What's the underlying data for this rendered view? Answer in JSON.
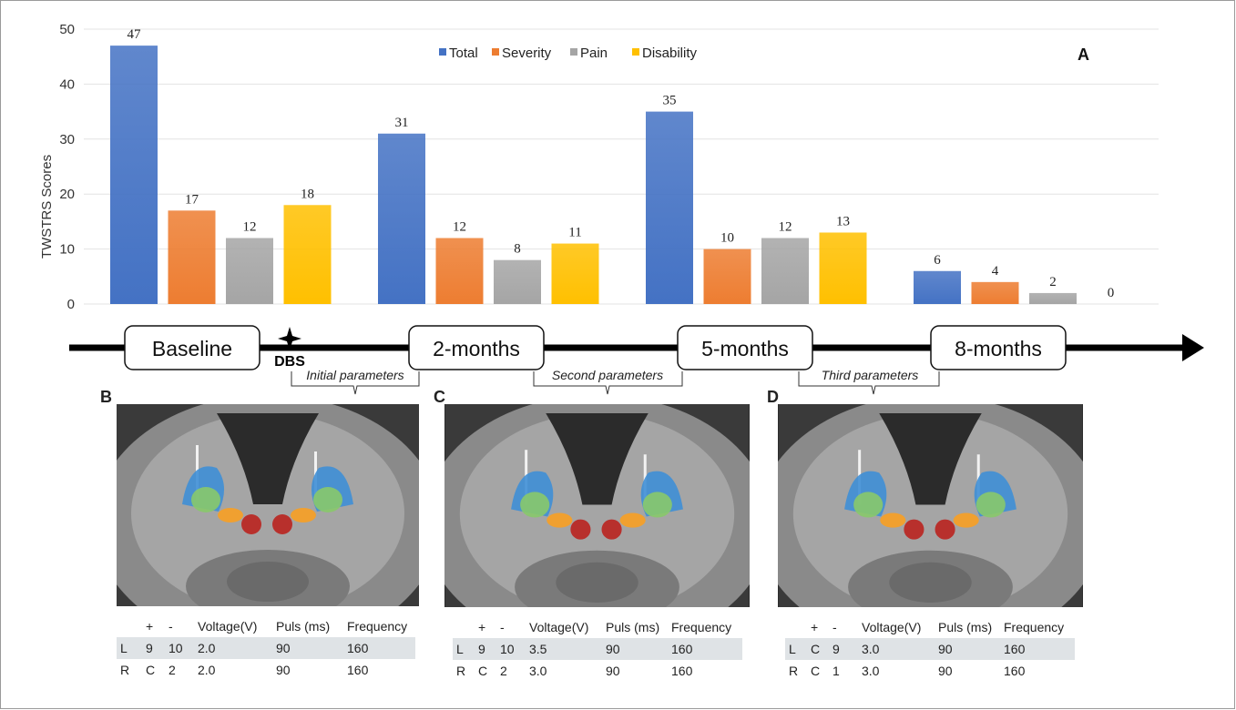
{
  "chart_data": {
    "type": "bar",
    "panel_label": "A",
    "ylabel": "TWSTRS Scores",
    "ylim": [
      0,
      50
    ],
    "yticks": [
      0,
      10,
      20,
      30,
      40,
      50
    ],
    "categories": [
      "Baseline",
      "2-months",
      "5-months",
      "8-months"
    ],
    "series": [
      {
        "name": "Total",
        "color": "#4472c4",
        "values": [
          47,
          31,
          35,
          6
        ]
      },
      {
        "name": "Severity",
        "color": "#ed7d31",
        "values": [
          17,
          12,
          10,
          4
        ]
      },
      {
        "name": "Pain",
        "color": "#a5a5a5",
        "values": [
          12,
          8,
          12,
          2
        ]
      },
      {
        "name": "Disability",
        "color": "#ffc000",
        "values": [
          18,
          11,
          13,
          0
        ]
      }
    ],
    "legend_position": "top",
    "grid": true
  },
  "timeline": {
    "labels": [
      "Baseline",
      "2-months",
      "5-months",
      "8-months"
    ],
    "event": "DBS",
    "brackets": [
      "Initial parameters",
      "Second parameters",
      "Third parameters"
    ]
  },
  "panels": [
    {
      "letter": "B",
      "table": {
        "headers": [
          "",
          "+",
          "-",
          "Voltage(V)",
          "Puls (ms)",
          "Frequency"
        ],
        "rows": [
          [
            "L",
            "9",
            "10",
            "2.0",
            "90",
            "160"
          ],
          [
            "R",
            "C",
            "2",
            "2.0",
            "90",
            "160"
          ]
        ]
      }
    },
    {
      "letter": "C",
      "table": {
        "headers": [
          "",
          "+",
          "-",
          "Voltage(V)",
          "Puls (ms)",
          "Frequency"
        ],
        "rows": [
          [
            "L",
            "9",
            "10",
            "3.5",
            "90",
            "160"
          ],
          [
            "R",
            "C",
            "2",
            "3.0",
            "90",
            "160"
          ]
        ]
      }
    },
    {
      "letter": "D",
      "table": {
        "headers": [
          "",
          "+",
          "-",
          "Voltage(V)",
          "Puls (ms)",
          "Frequency"
        ],
        "rows": [
          [
            "L",
            "C",
            "9",
            "3.0",
            "90",
            "160"
          ],
          [
            "R",
            "C",
            "1",
            "3.0",
            "90",
            "160"
          ]
        ]
      }
    }
  ]
}
